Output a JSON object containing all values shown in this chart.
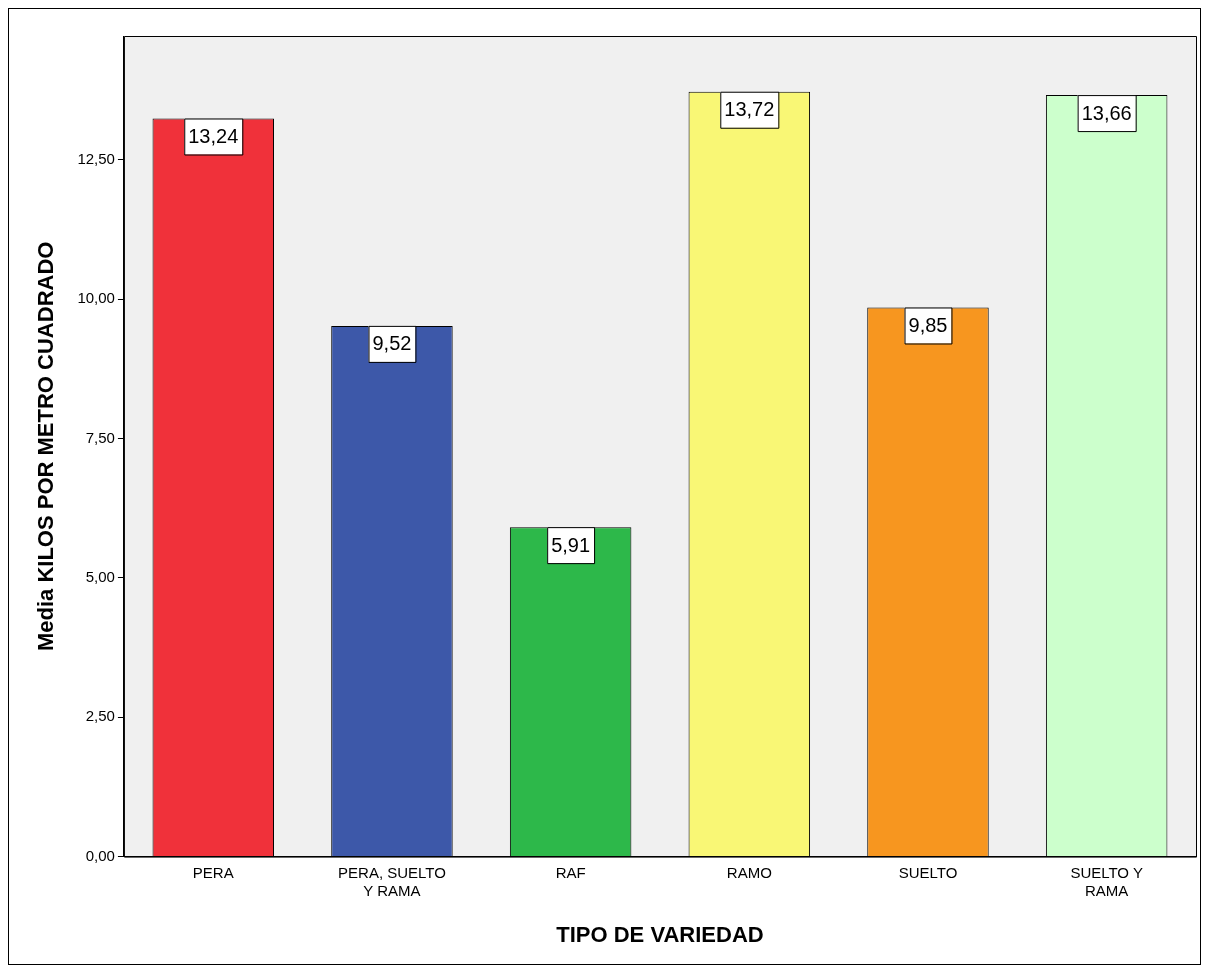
{
  "chart_data": {
    "type": "bar",
    "xlabel": "TIPO DE VARIEDAD",
    "ylabel": "Media KILOS POR METRO CUADRADO",
    "categories": [
      "PERA",
      "PERA, SUELTO Y RAMA",
      "RAF",
      "RAMO",
      "SUELTO",
      "SUELTO Y RAMA"
    ],
    "values": [
      13.24,
      9.52,
      5.91,
      13.72,
      9.85,
      13.66
    ],
    "value_labels": [
      "13,24",
      "9,52",
      "5,91",
      "13,72",
      "9,85",
      "13,66"
    ],
    "colors": [
      "#f0313a",
      "#3d58a9",
      "#2db84a",
      "#f9f775",
      "#f7961f",
      "#ccffcc"
    ],
    "ylim": [
      0,
      14.72
    ],
    "yticks": [
      {
        "value": 0,
        "label": "0,00"
      },
      {
        "value": 2.5,
        "label": "2,50"
      },
      {
        "value": 5,
        "label": "5,00"
      },
      {
        "value": 7.5,
        "label": "7,50"
      },
      {
        "value": 10,
        "label": "10,00"
      },
      {
        "value": 12.5,
        "label": "12,50"
      }
    ],
    "grid": false,
    "legend": false
  }
}
